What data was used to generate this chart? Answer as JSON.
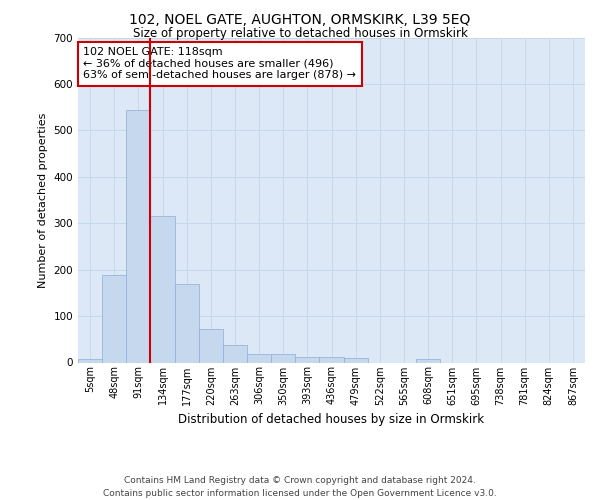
{
  "title": "102, NOEL GATE, AUGHTON, ORMSKIRK, L39 5EQ",
  "subtitle": "Size of property relative to detached houses in Ormskirk",
  "xlabel": "Distribution of detached houses by size in Ormskirk",
  "ylabel": "Number of detached properties",
  "bar_color": "#c5d8ee",
  "bar_edge_color": "#8ab0d8",
  "grid_color": "#c8d8eb",
  "background_color": "#dce8f5",
  "vline_color": "#cc0000",
  "vline_x": 2.5,
  "annotation_text": "102 NOEL GATE: 118sqm\n← 36% of detached houses are smaller (496)\n63% of semi-detached houses are larger (878) →",
  "annotation_box_color": "#ffffff",
  "annotation_box_edge": "#cc0000",
  "bin_labels": [
    "5sqm",
    "48sqm",
    "91sqm",
    "134sqm",
    "177sqm",
    "220sqm",
    "263sqm",
    "306sqm",
    "350sqm",
    "393sqm",
    "436sqm",
    "479sqm",
    "522sqm",
    "565sqm",
    "608sqm",
    "651sqm",
    "695sqm",
    "738sqm",
    "781sqm",
    "824sqm",
    "867sqm"
  ],
  "bar_heights": [
    8,
    188,
    543,
    315,
    170,
    72,
    38,
    18,
    18,
    12,
    12,
    10,
    0,
    0,
    8,
    0,
    0,
    0,
    0,
    0,
    0
  ],
  "ylim": [
    0,
    700
  ],
  "yticks": [
    0,
    100,
    200,
    300,
    400,
    500,
    600,
    700
  ],
  "footer": "Contains HM Land Registry data © Crown copyright and database right 2024.\nContains public sector information licensed under the Open Government Licence v3.0.",
  "figsize": [
    6.0,
    5.0
  ],
  "dpi": 100
}
